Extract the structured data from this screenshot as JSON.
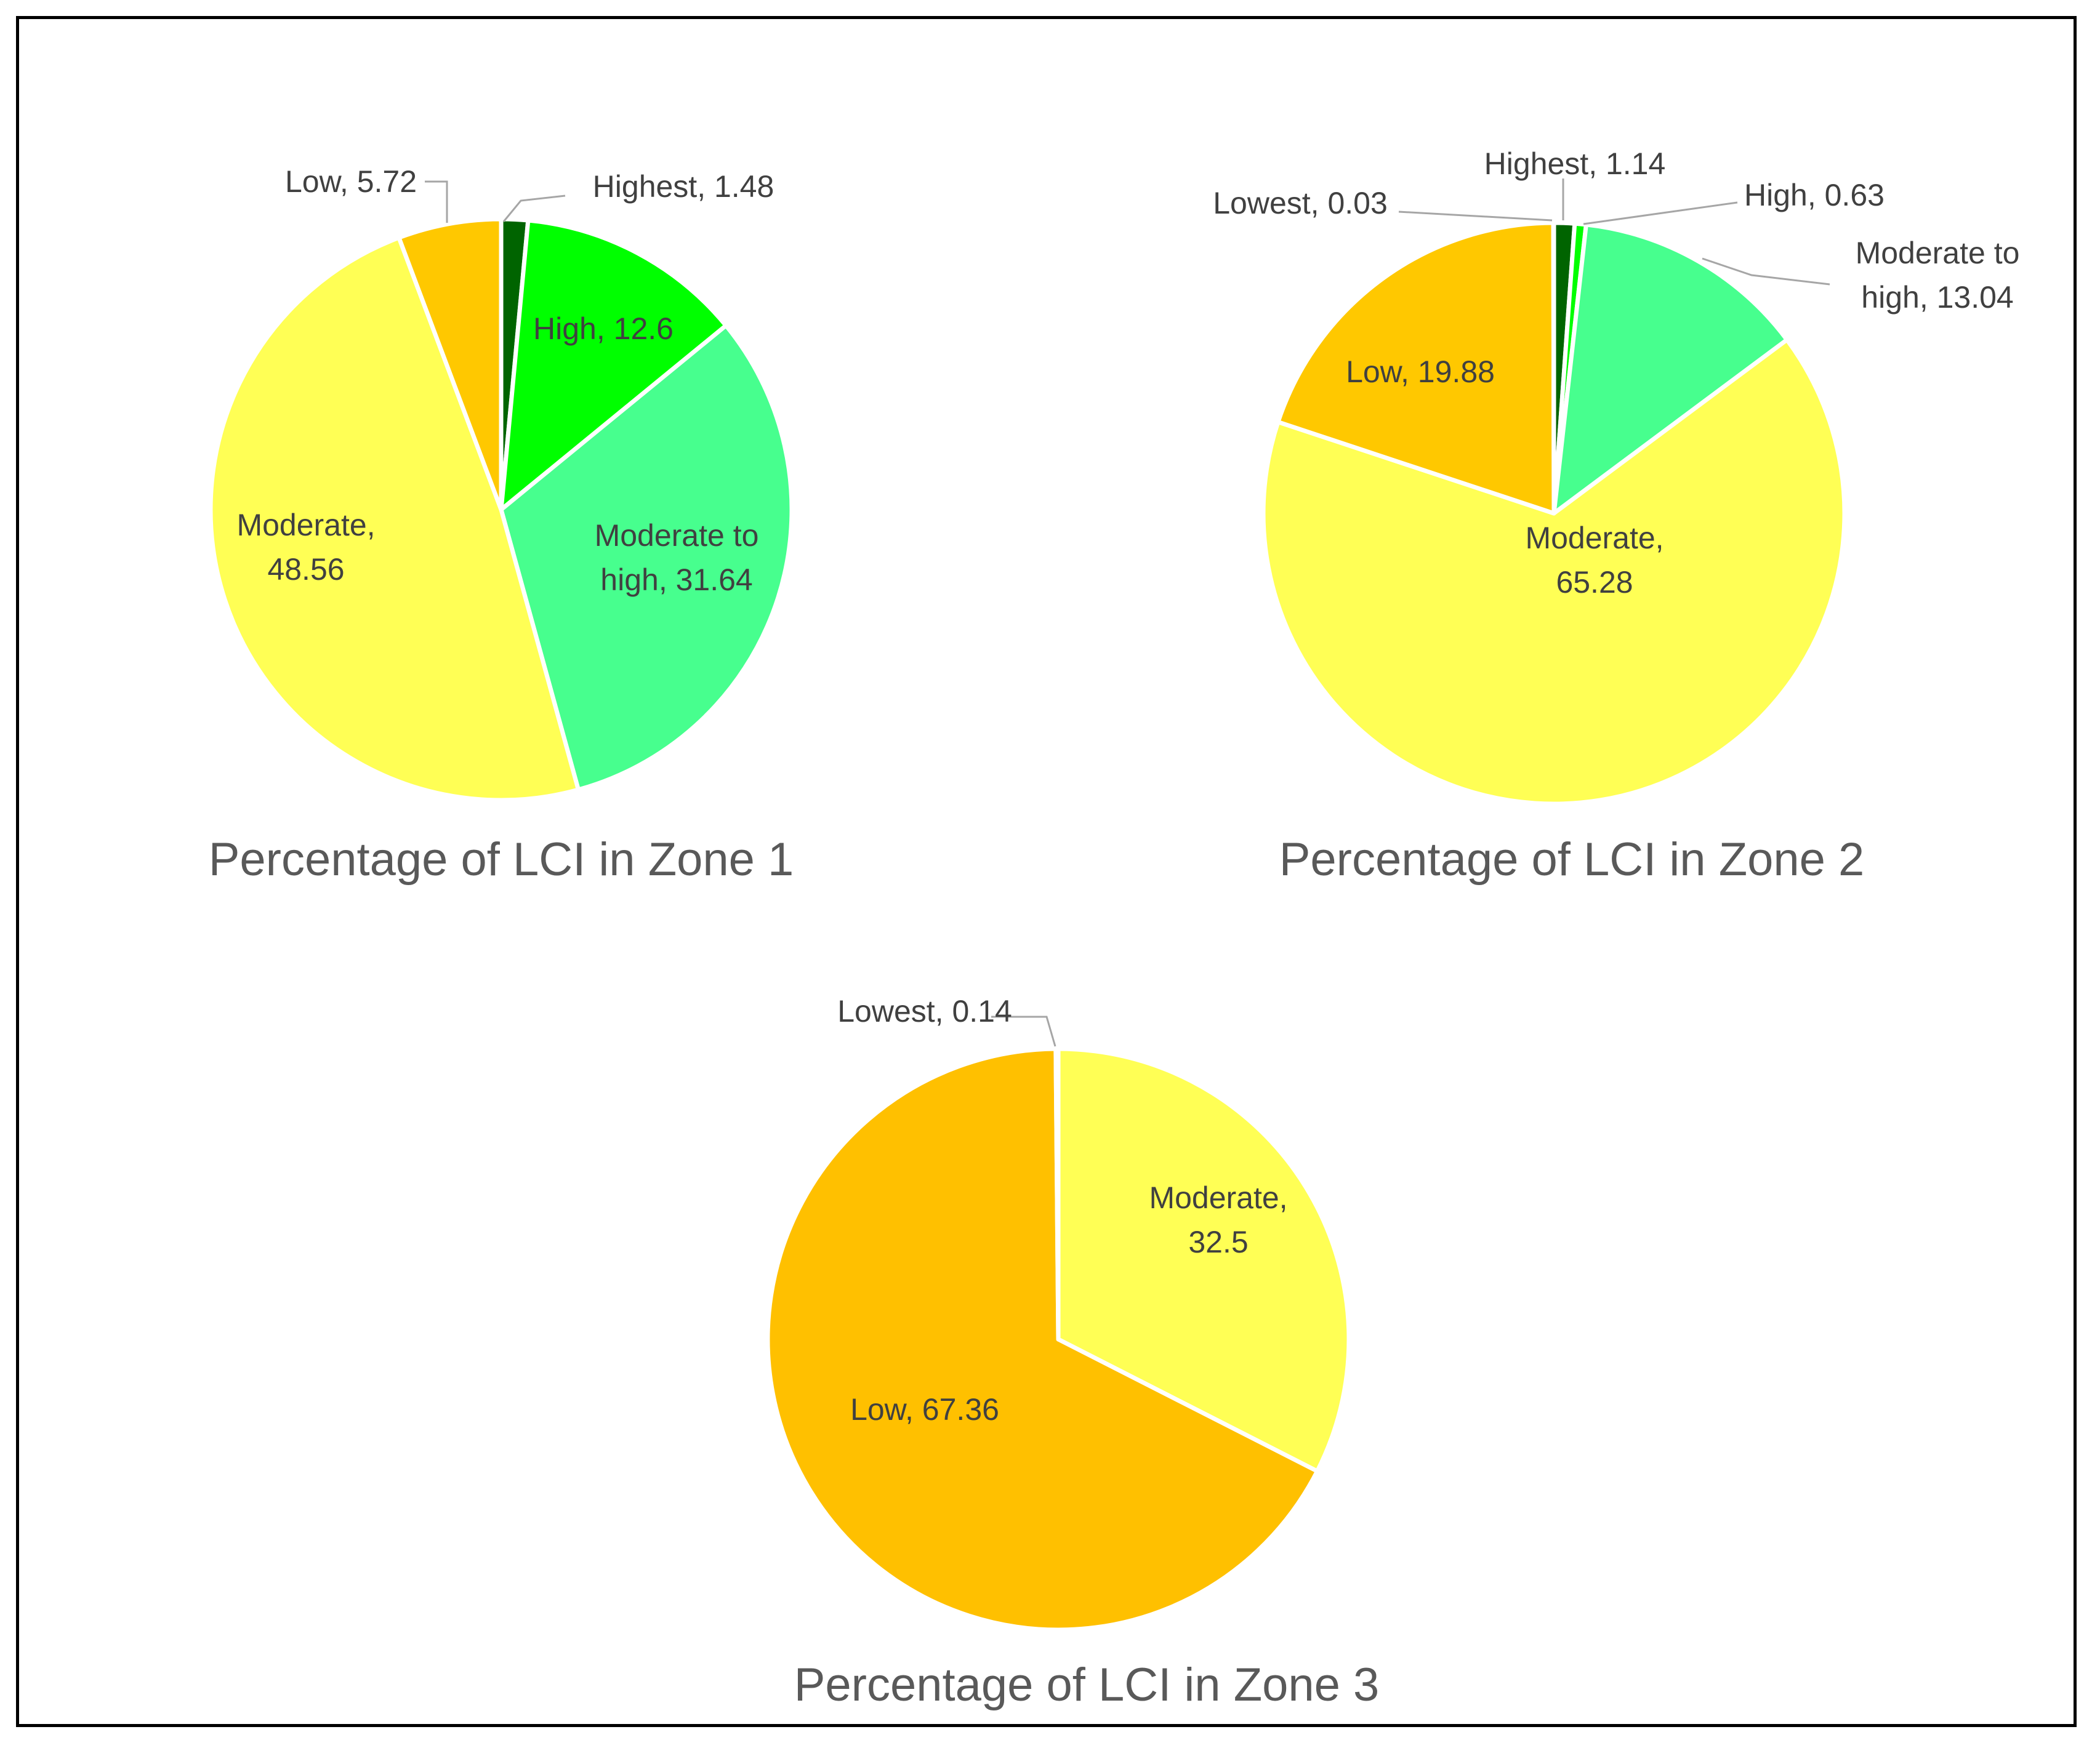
{
  "chart_data": [
    {
      "type": "pie",
      "title": "Percentage of LCI in Zone 1",
      "slices": [
        {
          "name": "Highest",
          "value": 1.48,
          "label": "Highest, 1.48",
          "color": "#006400",
          "label_lines": [
            "Highest, 1.48"
          ]
        },
        {
          "name": "High",
          "value": 12.6,
          "label": "High, 12.6",
          "color": "#00ff00",
          "label_lines": [
            "High, 12.6"
          ]
        },
        {
          "name": "Moderate to high",
          "value": 31.64,
          "label": "Moderate to high, 31.64",
          "color": "#47ff8e",
          "label_lines": [
            "Moderate to",
            "high, 31.64"
          ]
        },
        {
          "name": "Moderate",
          "value": 48.56,
          "label": "Moderate, 48.56",
          "color": "#ffff55",
          "label_lines": [
            "Moderate,",
            "48.56"
          ]
        },
        {
          "name": "Low",
          "value": 5.72,
          "label": "Low, 5.72",
          "color": "#ffc800",
          "label_lines": [
            "Low, 5.72"
          ]
        }
      ]
    },
    {
      "type": "pie",
      "title": "Percentage of LCI in Zone 2",
      "slices": [
        {
          "name": "Highest",
          "value": 1.14,
          "label": "Highest, 1.14",
          "color": "#006400",
          "label_lines": [
            "Highest, 1.14"
          ]
        },
        {
          "name": "High",
          "value": 0.63,
          "label": "High, 0.63",
          "color": "#00ff00",
          "label_lines": [
            "High, 0.63"
          ]
        },
        {
          "name": "Moderate to high",
          "value": 13.04,
          "label": "Moderate to high, 13.04",
          "color": "#47ff8e",
          "label_lines": [
            "Moderate to",
            "high, 13.04"
          ]
        },
        {
          "name": "Moderate",
          "value": 65.28,
          "label": "Moderate, 65.28",
          "color": "#ffff55",
          "label_lines": [
            "Moderate,",
            "65.28"
          ]
        },
        {
          "name": "Low",
          "value": 19.88,
          "label": "Low, 19.88",
          "color": "#ffc800",
          "label_lines": [
            "Low, 19.88"
          ]
        },
        {
          "name": "Lowest",
          "value": 0.03,
          "label": "Lowest, 0.03",
          "color": "#ff8c00",
          "label_lines": [
            "Lowest, 0.03"
          ]
        }
      ]
    },
    {
      "type": "pie",
      "title": "Percentage of LCI in Zone 3",
      "slices": [
        {
          "name": "Moderate",
          "value": 32.5,
          "label": "Moderate, 32.5",
          "color": "#ffff55",
          "label_lines": [
            "Moderate,",
            "32.5"
          ]
        },
        {
          "name": "Low",
          "value": 67.36,
          "label": "Low, 67.36",
          "color": "#ffc000",
          "label_lines": [
            "Low, 67.36"
          ]
        },
        {
          "name": "Lowest",
          "value": 0.14,
          "label": "Lowest, 0.14",
          "color": "#ff8c00",
          "label_lines": [
            "Lowest, 0.14"
          ]
        }
      ]
    }
  ]
}
